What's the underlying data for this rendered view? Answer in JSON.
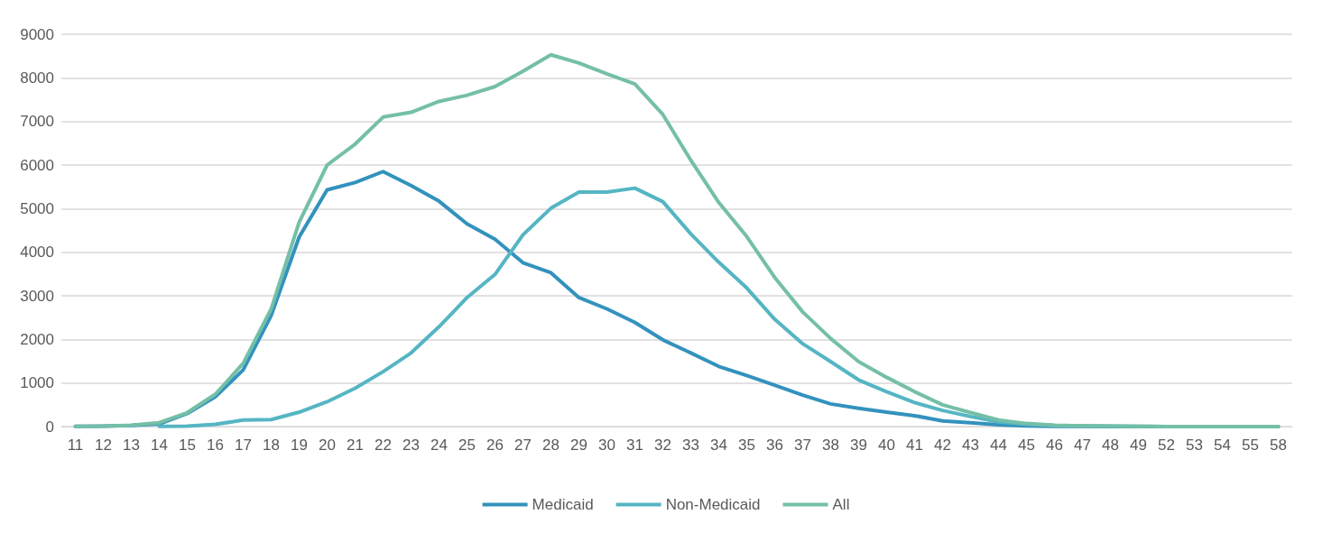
{
  "chart_data": {
    "type": "line",
    "categories": [
      "11",
      "12",
      "13",
      "14",
      "15",
      "16",
      "17",
      "18",
      "19",
      "20",
      "21",
      "22",
      "23",
      "24",
      "25",
      "26",
      "27",
      "28",
      "29",
      "30",
      "31",
      "32",
      "33",
      "34",
      "35",
      "36",
      "37",
      "38",
      "39",
      "40",
      "41",
      "42",
      "43",
      "44",
      "45",
      "46",
      "47",
      "48",
      "49",
      "52",
      "53",
      "54",
      "55",
      "58"
    ],
    "series": [
      {
        "name": "Medicaid",
        "color": "#3392bd",
        "values": [
          5,
          10,
          25,
          60,
          300,
          680,
          1300,
          2550,
          4350,
          5430,
          5600,
          5850,
          5530,
          5170,
          4650,
          4300,
          3760,
          3530,
          2960,
          2700,
          2390,
          1990,
          1690,
          1380,
          1170,
          950,
          720,
          520,
          420,
          330,
          250,
          130,
          90,
          40,
          15,
          5,
          3,
          2,
          1,
          0,
          0,
          0,
          0,
          0
        ]
      },
      {
        "name": "Non-Medicaid",
        "color": "#55b5c3",
        "values": [
          null,
          null,
          null,
          5,
          10,
          50,
          150,
          160,
          330,
          570,
          880,
          1260,
          1690,
          2290,
          2960,
          3490,
          4400,
          5010,
          5380,
          5380,
          5470,
          5160,
          4420,
          3770,
          3180,
          2460,
          1900,
          1490,
          1070,
          800,
          550,
          370,
          230,
          110,
          50,
          25,
          15,
          8,
          5,
          2,
          1,
          1,
          0,
          0
        ]
      },
      {
        "name": "All",
        "color": "#74bfa7",
        "values": [
          5,
          10,
          30,
          90,
          320,
          740,
          1450,
          2700,
          4690,
          6000,
          6480,
          7100,
          7210,
          7460,
          7600,
          7800,
          8150,
          8530,
          8340,
          8090,
          7860,
          7160,
          6110,
          5140,
          4360,
          3420,
          2630,
          2020,
          1490,
          1130,
          800,
          500,
          320,
          150,
          70,
          30,
          18,
          10,
          6,
          2,
          1,
          1,
          0,
          0
        ]
      }
    ],
    "ylim": [
      0,
      9000
    ],
    "yticks": [
      0,
      1000,
      2000,
      3000,
      4000,
      5000,
      6000,
      7000,
      8000,
      9000
    ],
    "grid": "y",
    "legend": "bottom",
    "marker": "none",
    "line_style": "solid"
  }
}
